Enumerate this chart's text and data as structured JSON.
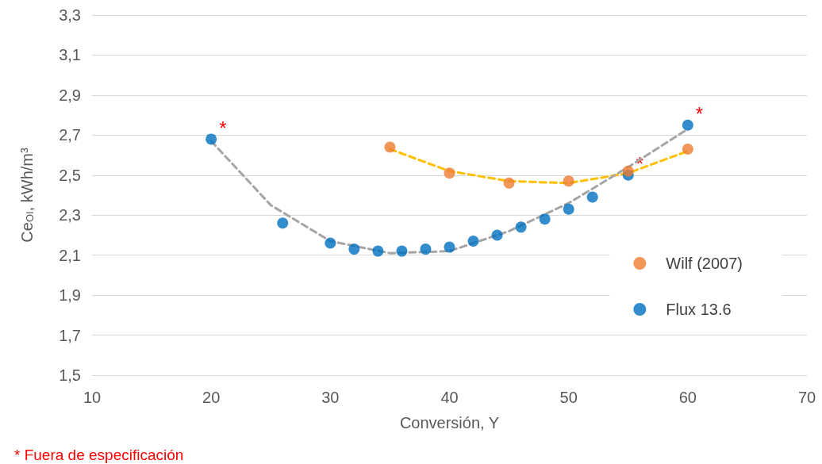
{
  "chart_data": {
    "type": "scatter",
    "xlabel": "Conversión, Y",
    "ylabel": "Ce$_{OI}$, kWh/m³",
    "xlim": [
      10,
      70
    ],
    "xticks": [
      10,
      20,
      30,
      40,
      50,
      60,
      70
    ],
    "ylim": [
      1.5,
      3.3
    ],
    "yticks": [
      {
        "value": 1.5,
        "label": "1,5"
      },
      {
        "value": 1.7,
        "label": "1,7"
      },
      {
        "value": 1.9,
        "label": "1,9"
      },
      {
        "value": 2.1,
        "label": "2,1"
      },
      {
        "value": 2.3,
        "label": "2,3"
      },
      {
        "value": 2.5,
        "label": "2,5"
      },
      {
        "value": 2.7,
        "label": "2,7"
      },
      {
        "value": 2.9,
        "label": "2,9"
      },
      {
        "value": 3.1,
        "label": "3,1"
      },
      {
        "value": 3.3,
        "label": "3,3"
      }
    ],
    "grid": "y",
    "legend": "right",
    "marker": "circle",
    "series": [
      {
        "name": "Wilf (2007)",
        "color": "#ed7d31",
        "x": [
          35,
          40,
          45,
          50,
          55,
          60
        ],
        "values": [
          2.64,
          2.51,
          2.46,
          2.47,
          2.52,
          2.63
        ]
      },
      {
        "name": "Flux 13.6",
        "color": "#0070c0",
        "x": [
          20,
          26,
          30,
          32,
          34,
          36,
          38,
          40,
          42,
          44,
          46,
          48,
          50,
          52,
          55,
          60
        ],
        "values": [
          2.68,
          2.26,
          2.16,
          2.13,
          2.12,
          2.12,
          2.13,
          2.14,
          2.17,
          2.2,
          2.24,
          2.28,
          2.33,
          2.39,
          2.5,
          2.75
        ]
      },
      {
        "type": "line",
        "line_style": "dashed",
        "marker": "none",
        "color": "#ffc000",
        "x": [
          35,
          40,
          45,
          50,
          55,
          60
        ],
        "values": [
          2.63,
          2.52,
          2.47,
          2.46,
          2.51,
          2.62
        ]
      },
      {
        "type": "line",
        "line_style": "dashed",
        "marker": "none",
        "color": "#a5a5a5",
        "x": [
          20,
          25,
          30,
          35,
          40,
          45,
          50,
          55,
          60
        ],
        "values": [
          2.67,
          2.35,
          2.17,
          2.11,
          2.12,
          2.22,
          2.36,
          2.54,
          2.73
        ]
      }
    ],
    "annotations": [
      {
        "text": "*",
        "x": 20,
        "y": 2.68
      },
      {
        "text": "*",
        "x": 60,
        "y": 2.75
      },
      {
        "text": "*",
        "x": 55,
        "y": 2.5
      },
      "* Fuera de especificación"
    ]
  }
}
